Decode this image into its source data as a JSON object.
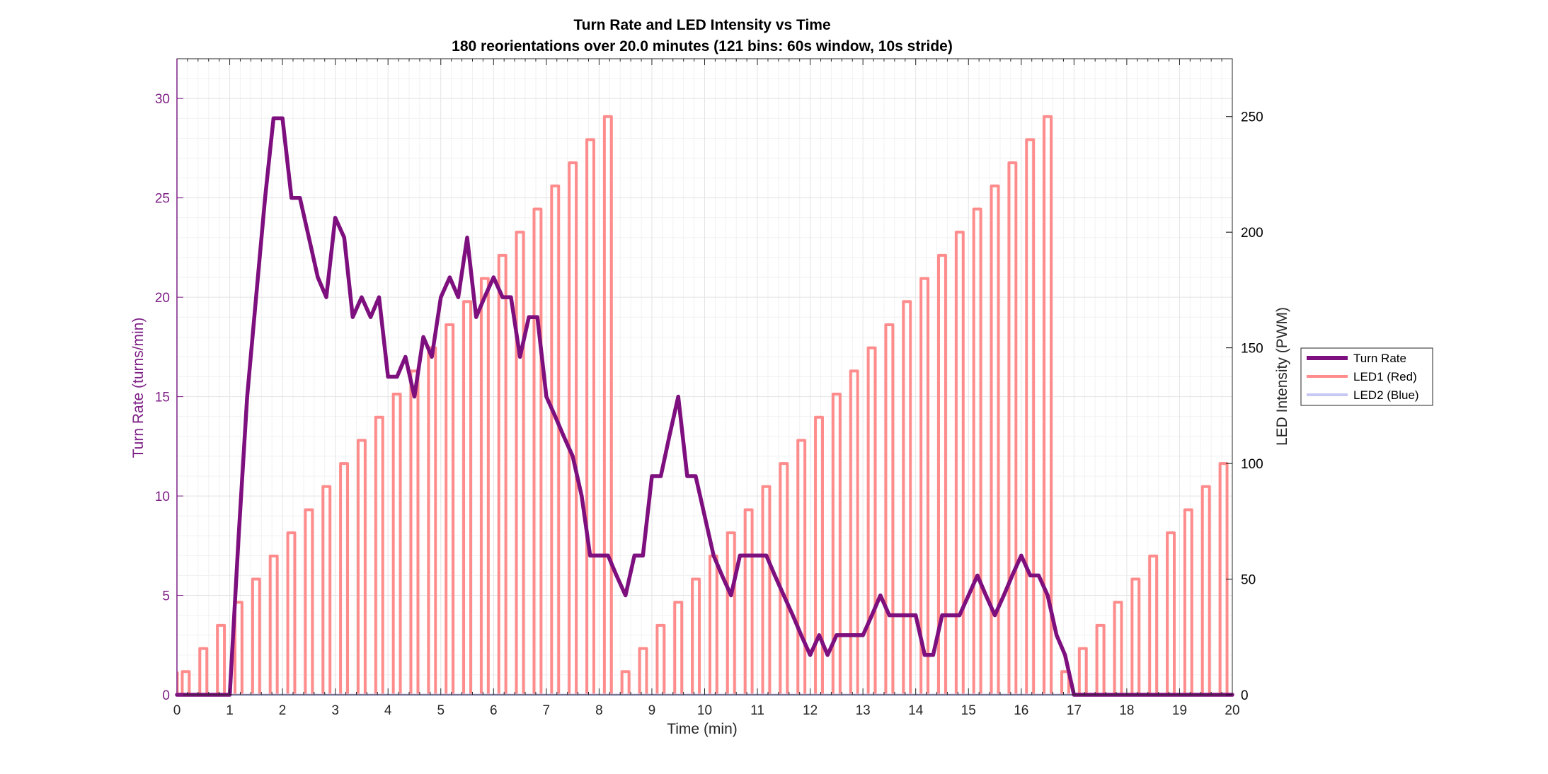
{
  "chart_data": {
    "type": "line",
    "title": "Turn Rate and LED Intensity vs Time",
    "subtitle": "180 reorientations over 20.0 minutes (121 bins: 60s window, 10s stride)",
    "xlabel": "Time (min)",
    "ylabel_left": "Turn Rate (turns/min)",
    "ylabel_right": "LED Intensity (PWM)",
    "xlim": [
      0,
      20
    ],
    "ylim_left": [
      0,
      32
    ],
    "ylim_right": [
      0,
      275
    ],
    "x_ticks": [
      0,
      1,
      2,
      3,
      4,
      5,
      6,
      7,
      8,
      9,
      10,
      11,
      12,
      13,
      14,
      15,
      16,
      17,
      18,
      19,
      20
    ],
    "y_ticks_left": [
      0,
      5,
      10,
      15,
      20,
      25,
      30
    ],
    "y_ticks_right": [
      0,
      50,
      100,
      150,
      200,
      250
    ],
    "grid": true,
    "legend_position": "outside-right",
    "colors": {
      "turn_rate": "#7e0f7e",
      "led1": "#ff8c8c",
      "led2": "#c7c7f5",
      "left_axis": "#7e1f86",
      "right_axis": "#000000",
      "grid": "#e4e4e4"
    },
    "legend": [
      {
        "key": "turn_rate",
        "label": "Turn Rate"
      },
      {
        "key": "led1",
        "label": "LED1 (Red)"
      },
      {
        "key": "led2",
        "label": "LED2 (Blue)"
      }
    ],
    "series": [
      {
        "name": "Turn Rate",
        "axis": "left",
        "points": [
          [
            0,
            0
          ],
          [
            0.5,
            0
          ],
          [
            1,
            0
          ],
          [
            1.17,
            8
          ],
          [
            1.33,
            15
          ],
          [
            1.5,
            20
          ],
          [
            1.67,
            25
          ],
          [
            1.83,
            29
          ],
          [
            2,
            29
          ],
          [
            2.17,
            25
          ],
          [
            2.33,
            25
          ],
          [
            2.5,
            23
          ],
          [
            2.67,
            21
          ],
          [
            2.83,
            20
          ],
          [
            3,
            24
          ],
          [
            3.17,
            23
          ],
          [
            3.33,
            19
          ],
          [
            3.5,
            20
          ],
          [
            3.67,
            19
          ],
          [
            3.83,
            20
          ],
          [
            4,
            16
          ],
          [
            4.17,
            16
          ],
          [
            4.33,
            17
          ],
          [
            4.5,
            15
          ],
          [
            4.67,
            18
          ],
          [
            4.83,
            17
          ],
          [
            5,
            20
          ],
          [
            5.17,
            21
          ],
          [
            5.33,
            20
          ],
          [
            5.5,
            23
          ],
          [
            5.67,
            19
          ],
          [
            5.83,
            20
          ],
          [
            6,
            21
          ],
          [
            6.17,
            20
          ],
          [
            6.33,
            20
          ],
          [
            6.5,
            17
          ],
          [
            6.67,
            19
          ],
          [
            6.83,
            19
          ],
          [
            7,
            15
          ],
          [
            7.17,
            14
          ],
          [
            7.33,
            13
          ],
          [
            7.5,
            12
          ],
          [
            7.67,
            10
          ],
          [
            7.83,
            7
          ],
          [
            8,
            7
          ],
          [
            8.17,
            7
          ],
          [
            8.33,
            6
          ],
          [
            8.5,
            5
          ],
          [
            8.67,
            7
          ],
          [
            8.83,
            7
          ],
          [
            9,
            11
          ],
          [
            9.17,
            11
          ],
          [
            9.33,
            13
          ],
          [
            9.5,
            15
          ],
          [
            9.67,
            11
          ],
          [
            9.83,
            11
          ],
          [
            10,
            9
          ],
          [
            10.17,
            7
          ],
          [
            10.33,
            6
          ],
          [
            10.5,
            5
          ],
          [
            10.67,
            7
          ],
          [
            10.83,
            7
          ],
          [
            11,
            7
          ],
          [
            11.17,
            7
          ],
          [
            11.33,
            6
          ],
          [
            11.5,
            5
          ],
          [
            11.67,
            4
          ],
          [
            11.83,
            3
          ],
          [
            12,
            2
          ],
          [
            12.17,
            3
          ],
          [
            12.33,
            2
          ],
          [
            12.5,
            3
          ],
          [
            12.67,
            3
          ],
          [
            12.83,
            3
          ],
          [
            13,
            3
          ],
          [
            13.17,
            4
          ],
          [
            13.33,
            5
          ],
          [
            13.5,
            4
          ],
          [
            13.67,
            4
          ],
          [
            13.83,
            4
          ],
          [
            14,
            4
          ],
          [
            14.17,
            2
          ],
          [
            14.33,
            2
          ],
          [
            14.5,
            4
          ],
          [
            14.67,
            4
          ],
          [
            14.83,
            4
          ],
          [
            15,
            5
          ],
          [
            15.17,
            6
          ],
          [
            15.33,
            5
          ],
          [
            15.5,
            4
          ],
          [
            15.67,
            5
          ],
          [
            15.83,
            6
          ],
          [
            16,
            7
          ],
          [
            16.17,
            6
          ],
          [
            16.33,
            6
          ],
          [
            16.5,
            5
          ],
          [
            16.67,
            3
          ],
          [
            16.83,
            2
          ],
          [
            17,
            0
          ],
          [
            17.5,
            0
          ],
          [
            18,
            0
          ],
          [
            18.5,
            0
          ],
          [
            19,
            0
          ],
          [
            19.5,
            0
          ],
          [
            20,
            0
          ]
        ]
      },
      {
        "name": "LED1 (Red)",
        "axis": "right",
        "pulse_width_min": 0.1333,
        "pulses": [
          [
            0.1667,
            10
          ],
          [
            0.5,
            20
          ],
          [
            0.8333,
            30
          ],
          [
            1.1667,
            40
          ],
          [
            1.5,
            50
          ],
          [
            1.8333,
            60
          ],
          [
            2.1667,
            70
          ],
          [
            2.5,
            80
          ],
          [
            2.8333,
            90
          ],
          [
            3.1667,
            100
          ],
          [
            3.5,
            110
          ],
          [
            3.8333,
            120
          ],
          [
            4.1667,
            130
          ],
          [
            4.5,
            140
          ],
          [
            4.8333,
            150
          ],
          [
            5.1667,
            160
          ],
          [
            5.5,
            170
          ],
          [
            5.8333,
            180
          ],
          [
            6.1667,
            190
          ],
          [
            6.5,
            200
          ],
          [
            6.8333,
            210
          ],
          [
            7.1667,
            220
          ],
          [
            7.5,
            230
          ],
          [
            7.8333,
            240
          ],
          [
            8.1667,
            250
          ],
          [
            8.5,
            10
          ],
          [
            8.8333,
            20
          ],
          [
            9.1667,
            30
          ],
          [
            9.5,
            40
          ],
          [
            9.8333,
            50
          ],
          [
            10.1667,
            60
          ],
          [
            10.5,
            70
          ],
          [
            10.8333,
            80
          ],
          [
            11.1667,
            90
          ],
          [
            11.5,
            100
          ],
          [
            11.8333,
            110
          ],
          [
            12.1667,
            120
          ],
          [
            12.5,
            130
          ],
          [
            12.8333,
            140
          ],
          [
            13.1667,
            150
          ],
          [
            13.5,
            160
          ],
          [
            13.8333,
            170
          ],
          [
            14.1667,
            180
          ],
          [
            14.5,
            190
          ],
          [
            14.8333,
            200
          ],
          [
            15.1667,
            210
          ],
          [
            15.5,
            220
          ],
          [
            15.8333,
            230
          ],
          [
            16.1667,
            240
          ],
          [
            16.5,
            250
          ],
          [
            16.8333,
            10
          ],
          [
            17.1667,
            20
          ],
          [
            17.5,
            30
          ],
          [
            17.8333,
            40
          ],
          [
            18.1667,
            50
          ],
          [
            18.5,
            60
          ],
          [
            18.8333,
            70
          ],
          [
            19.1667,
            80
          ],
          [
            19.5,
            90
          ],
          [
            19.8333,
            100
          ]
        ]
      },
      {
        "name": "LED2 (Blue)",
        "axis": "right",
        "points": [
          [
            0,
            0
          ],
          [
            20,
            0
          ]
        ]
      }
    ]
  }
}
